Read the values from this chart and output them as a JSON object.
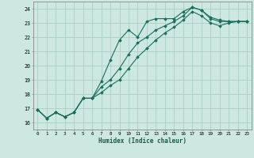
{
  "xlabel": "Humidex (Indice chaleur)",
  "ylabel": "",
  "bg_color": "#cce8e0",
  "grid_color": "#aad0c8",
  "line_color": "#1a6e5e",
  "xlim": [
    -0.5,
    23.5
  ],
  "ylim": [
    15.5,
    24.5
  ],
  "xticks": [
    0,
    1,
    2,
    3,
    4,
    5,
    6,
    7,
    8,
    9,
    10,
    11,
    12,
    13,
    14,
    15,
    16,
    17,
    18,
    19,
    20,
    21,
    22,
    23
  ],
  "yticks": [
    16,
    17,
    18,
    19,
    20,
    21,
    22,
    23,
    24
  ],
  "line1_x": [
    0,
    1,
    2,
    3,
    4,
    5,
    6,
    7,
    8,
    9,
    10,
    11,
    12,
    13,
    14,
    15,
    16,
    17,
    18,
    19,
    20,
    21,
    22,
    23
  ],
  "line1_y": [
    16.9,
    16.3,
    16.7,
    16.4,
    16.7,
    17.7,
    17.7,
    18.9,
    20.4,
    21.8,
    22.5,
    22.0,
    23.1,
    23.3,
    23.3,
    23.3,
    23.8,
    24.1,
    23.9,
    23.4,
    23.2,
    23.1,
    23.1,
    23.1
  ],
  "line2_x": [
    0,
    1,
    2,
    3,
    4,
    5,
    6,
    7,
    8,
    9,
    10,
    11,
    12,
    13,
    14,
    15,
    16,
    17,
    18,
    19,
    20,
    21,
    22,
    23
  ],
  "line2_y": [
    16.9,
    16.3,
    16.7,
    16.4,
    16.7,
    17.7,
    17.7,
    18.1,
    18.6,
    19.0,
    19.8,
    20.6,
    21.2,
    21.8,
    22.3,
    22.7,
    23.2,
    23.8,
    23.5,
    23.0,
    22.8,
    23.0,
    23.1,
    23.1
  ],
  "line3_x": [
    0,
    1,
    2,
    3,
    4,
    5,
    6,
    7,
    8,
    9,
    10,
    11,
    12,
    13,
    14,
    15,
    16,
    17,
    18,
    19,
    20,
    21,
    22,
    23
  ],
  "line3_y": [
    16.9,
    16.3,
    16.7,
    16.4,
    16.7,
    17.7,
    17.7,
    18.5,
    19.0,
    19.8,
    20.8,
    21.6,
    22.0,
    22.5,
    22.8,
    23.1,
    23.5,
    24.1,
    23.9,
    23.3,
    23.1,
    23.1,
    23.1,
    23.1
  ]
}
